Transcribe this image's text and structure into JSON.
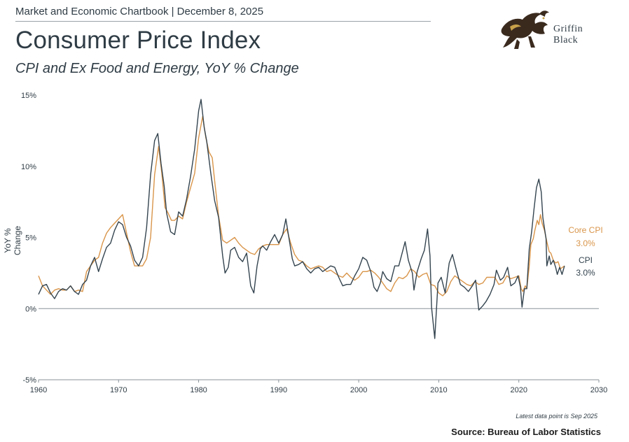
{
  "header": {
    "topline": "Market and Economic Chartbook | December 8, 2025",
    "title": "Consumer Price Index",
    "subtitle": "CPI and Ex Food and Energy, YoY % Change"
  },
  "logo": {
    "line1": "Griffin",
    "line2": "Black",
    "icon": "griffin-emblem"
  },
  "footer": {
    "note": "Latest data point is Sep 2025",
    "source": "Source: Bureau of Labor Statistics"
  },
  "chart_data": {
    "type": "line",
    "title": "",
    "xlabel": "",
    "ylabel": "YoY % Change",
    "xlim": [
      1960,
      2030
    ],
    "ylim": [
      -5,
      15
    ],
    "x_ticks": [
      1960,
      1970,
      1980,
      1990,
      2000,
      2010,
      2020,
      2030
    ],
    "y_ticks": [
      -5,
      0,
      5,
      10,
      15
    ],
    "y_tick_labels": [
      "-5%",
      "0%",
      "5%",
      "10%",
      "15%"
    ],
    "zero_line": true,
    "grid": false,
    "legend": "inline-right",
    "colors": {
      "cpi": "#34444f",
      "core": "#d9954a",
      "zero": "#8a9299"
    },
    "series": [
      {
        "name": "CPI",
        "label_value": "3.0%",
        "color": "#34444f",
        "points": [
          [
            1960.0,
            1.0
          ],
          [
            1960.5,
            1.6
          ],
          [
            1961.0,
            1.7
          ],
          [
            1961.5,
            1.1
          ],
          [
            1962.0,
            0.7
          ],
          [
            1962.5,
            1.2
          ],
          [
            1963.0,
            1.4
          ],
          [
            1963.5,
            1.3
          ],
          [
            1964.0,
            1.6
          ],
          [
            1964.5,
            1.2
          ],
          [
            1965.0,
            1.0
          ],
          [
            1965.5,
            1.7
          ],
          [
            1966.0,
            2.0
          ],
          [
            1966.5,
            3.0
          ],
          [
            1967.0,
            3.6
          ],
          [
            1967.5,
            2.6
          ],
          [
            1968.0,
            3.5
          ],
          [
            1968.5,
            4.3
          ],
          [
            1969.0,
            4.6
          ],
          [
            1969.5,
            5.5
          ],
          [
            1970.0,
            6.1
          ],
          [
            1970.5,
            5.9
          ],
          [
            1971.0,
            5.0
          ],
          [
            1971.5,
            4.4
          ],
          [
            1972.0,
            3.4
          ],
          [
            1972.5,
            3.0
          ],
          [
            1973.0,
            3.6
          ],
          [
            1973.5,
            5.7
          ],
          [
            1974.0,
            9.4
          ],
          [
            1974.5,
            11.8
          ],
          [
            1974.9,
            12.3
          ],
          [
            1975.3,
            10.2
          ],
          [
            1975.7,
            8.6
          ],
          [
            1976.0,
            6.7
          ],
          [
            1976.5,
            5.4
          ],
          [
            1977.0,
            5.2
          ],
          [
            1977.5,
            6.8
          ],
          [
            1978.0,
            6.5
          ],
          [
            1978.5,
            7.7
          ],
          [
            1979.0,
            9.3
          ],
          [
            1979.5,
            11.2
          ],
          [
            1980.0,
            13.9
          ],
          [
            1980.3,
            14.7
          ],
          [
            1980.7,
            12.7
          ],
          [
            1981.0,
            11.8
          ],
          [
            1981.5,
            9.6
          ],
          [
            1982.0,
            7.6
          ],
          [
            1982.5,
            6.4
          ],
          [
            1983.0,
            3.7
          ],
          [
            1983.3,
            2.5
          ],
          [
            1983.7,
            2.9
          ],
          [
            1984.0,
            4.1
          ],
          [
            1984.5,
            4.3
          ],
          [
            1985.0,
            3.6
          ],
          [
            1985.5,
            3.3
          ],
          [
            1986.0,
            3.9
          ],
          [
            1986.5,
            1.6
          ],
          [
            1986.9,
            1.1
          ],
          [
            1987.3,
            3.0
          ],
          [
            1987.7,
            4.2
          ],
          [
            1988.0,
            4.4
          ],
          [
            1988.5,
            4.1
          ],
          [
            1989.0,
            4.7
          ],
          [
            1989.5,
            5.2
          ],
          [
            1990.0,
            4.6
          ],
          [
            1990.5,
            5.2
          ],
          [
            1990.9,
            6.3
          ],
          [
            1991.3,
            4.9
          ],
          [
            1991.7,
            3.5
          ],
          [
            1992.0,
            3.0
          ],
          [
            1992.5,
            3.1
          ],
          [
            1993.0,
            3.3
          ],
          [
            1993.5,
            2.8
          ],
          [
            1994.0,
            2.5
          ],
          [
            1994.5,
            2.8
          ],
          [
            1995.0,
            2.9
          ],
          [
            1995.5,
            2.6
          ],
          [
            1996.0,
            2.8
          ],
          [
            1996.5,
            3.0
          ],
          [
            1997.0,
            2.9
          ],
          [
            1997.5,
            2.2
          ],
          [
            1998.0,
            1.6
          ],
          [
            1998.5,
            1.7
          ],
          [
            1999.0,
            1.7
          ],
          [
            1999.5,
            2.3
          ],
          [
            2000.0,
            2.8
          ],
          [
            2000.5,
            3.6
          ],
          [
            2001.0,
            3.4
          ],
          [
            2001.5,
            2.6
          ],
          [
            2001.9,
            1.5
          ],
          [
            2002.3,
            1.2
          ],
          [
            2002.7,
            1.8
          ],
          [
            2003.0,
            2.6
          ],
          [
            2003.5,
            2.1
          ],
          [
            2004.0,
            1.9
          ],
          [
            2004.5,
            3.0
          ],
          [
            2005.0,
            3.0
          ],
          [
            2005.8,
            4.7
          ],
          [
            2006.2,
            3.4
          ],
          [
            2006.7,
            2.5
          ],
          [
            2006.9,
            1.3
          ],
          [
            2007.3,
            2.6
          ],
          [
            2007.8,
            3.5
          ],
          [
            2008.2,
            4.1
          ],
          [
            2008.6,
            5.6
          ],
          [
            2008.9,
            3.7
          ],
          [
            2009.1,
            0.1
          ],
          [
            2009.5,
            -2.1
          ],
          [
            2009.9,
            1.8
          ],
          [
            2010.3,
            2.2
          ],
          [
            2010.8,
            1.1
          ],
          [
            2011.3,
            3.2
          ],
          [
            2011.7,
            3.8
          ],
          [
            2012.2,
            2.7
          ],
          [
            2012.7,
            1.7
          ],
          [
            2013.2,
            1.5
          ],
          [
            2013.7,
            1.2
          ],
          [
            2014.2,
            1.6
          ],
          [
            2014.6,
            2.0
          ],
          [
            2015.0,
            -0.1
          ],
          [
            2015.5,
            0.2
          ],
          [
            2015.9,
            0.5
          ],
          [
            2016.4,
            1.0
          ],
          [
            2016.9,
            1.7
          ],
          [
            2017.2,
            2.7
          ],
          [
            2017.7,
            2.0
          ],
          [
            2018.1,
            2.2
          ],
          [
            2018.6,
            2.9
          ],
          [
            2019.0,
            1.6
          ],
          [
            2019.5,
            1.8
          ],
          [
            2019.9,
            2.3
          ],
          [
            2020.2,
            1.5
          ],
          [
            2020.4,
            0.1
          ],
          [
            2020.7,
            1.4
          ],
          [
            2021.0,
            1.4
          ],
          [
            2021.3,
            4.2
          ],
          [
            2021.6,
            5.4
          ],
          [
            2021.9,
            7.0
          ],
          [
            2022.2,
            8.5
          ],
          [
            2022.5,
            9.1
          ],
          [
            2022.8,
            8.2
          ],
          [
            2023.0,
            6.4
          ],
          [
            2023.4,
            4.9
          ],
          [
            2023.5,
            3.0
          ],
          [
            2023.8,
            3.7
          ],
          [
            2024.0,
            3.1
          ],
          [
            2024.3,
            3.4
          ],
          [
            2024.6,
            2.9
          ],
          [
            2024.8,
            2.4
          ],
          [
            2025.1,
            2.9
          ],
          [
            2025.4,
            2.4
          ],
          [
            2025.7,
            3.0
          ]
        ]
      },
      {
        "name": "Core CPI",
        "label_value": "3.0%",
        "color": "#d9954a",
        "points": [
          [
            1960.0,
            2.3
          ],
          [
            1960.5,
            1.6
          ],
          [
            1961.0,
            1.3
          ],
          [
            1961.5,
            1.0
          ],
          [
            1962.0,
            1.3
          ],
          [
            1962.5,
            1.4
          ],
          [
            1963.0,
            1.3
          ],
          [
            1963.5,
            1.3
          ],
          [
            1964.0,
            1.6
          ],
          [
            1964.5,
            1.2
          ],
          [
            1965.0,
            1.3
          ],
          [
            1965.5,
            1.2
          ],
          [
            1966.0,
            2.6
          ],
          [
            1966.5,
            3.0
          ],
          [
            1967.0,
            3.4
          ],
          [
            1967.5,
            3.6
          ],
          [
            1968.0,
            4.6
          ],
          [
            1968.5,
            5.3
          ],
          [
            1969.0,
            5.7
          ],
          [
            1969.5,
            6.0
          ],
          [
            1970.0,
            6.3
          ],
          [
            1970.5,
            6.6
          ],
          [
            1971.0,
            5.3
          ],
          [
            1971.5,
            4.0
          ],
          [
            1972.0,
            3.0
          ],
          [
            1972.5,
            3.0
          ],
          [
            1973.0,
            3.0
          ],
          [
            1973.5,
            3.5
          ],
          [
            1974.0,
            5.0
          ],
          [
            1974.5,
            9.4
          ],
          [
            1975.0,
            11.4
          ],
          [
            1975.4,
            9.5
          ],
          [
            1975.8,
            7.1
          ],
          [
            1976.2,
            6.7
          ],
          [
            1976.6,
            6.2
          ],
          [
            1977.0,
            6.2
          ],
          [
            1977.5,
            6.5
          ],
          [
            1978.0,
            6.3
          ],
          [
            1978.5,
            7.5
          ],
          [
            1979.0,
            8.5
          ],
          [
            1979.5,
            9.5
          ],
          [
            1980.0,
            12.0
          ],
          [
            1980.5,
            13.5
          ],
          [
            1980.9,
            12.0
          ],
          [
            1981.3,
            11.0
          ],
          [
            1981.7,
            10.6
          ],
          [
            1982.0,
            9.0
          ],
          [
            1982.5,
            6.5
          ],
          [
            1983.0,
            4.8
          ],
          [
            1983.5,
            4.6
          ],
          [
            1984.0,
            4.8
          ],
          [
            1984.5,
            5.0
          ],
          [
            1985.0,
            4.6
          ],
          [
            1985.5,
            4.3
          ],
          [
            1986.0,
            4.1
          ],
          [
            1986.5,
            3.9
          ],
          [
            1987.0,
            3.8
          ],
          [
            1987.5,
            4.2
          ],
          [
            1988.0,
            4.4
          ],
          [
            1988.5,
            4.5
          ],
          [
            1989.0,
            4.5
          ],
          [
            1989.5,
            4.5
          ],
          [
            1990.0,
            4.5
          ],
          [
            1990.5,
            5.2
          ],
          [
            1991.0,
            5.6
          ],
          [
            1991.5,
            4.6
          ],
          [
            1992.0,
            3.8
          ],
          [
            1992.5,
            3.4
          ],
          [
            1993.0,
            3.3
          ],
          [
            1993.5,
            3.0
          ],
          [
            1994.0,
            2.8
          ],
          [
            1994.5,
            2.9
          ],
          [
            1995.0,
            3.0
          ],
          [
            1995.5,
            2.9
          ],
          [
            1996.0,
            2.6
          ],
          [
            1996.5,
            2.7
          ],
          [
            1997.0,
            2.5
          ],
          [
            1997.5,
            2.3
          ],
          [
            1998.0,
            2.2
          ],
          [
            1998.5,
            2.5
          ],
          [
            1999.0,
            2.2
          ],
          [
            1999.5,
            2.0
          ],
          [
            2000.0,
            2.2
          ],
          [
            2000.5,
            2.6
          ],
          [
            2001.0,
            2.6
          ],
          [
            2001.5,
            2.7
          ],
          [
            2002.0,
            2.5
          ],
          [
            2002.5,
            2.2
          ],
          [
            2003.0,
            1.8
          ],
          [
            2003.5,
            1.4
          ],
          [
            2004.0,
            1.2
          ],
          [
            2004.5,
            1.8
          ],
          [
            2005.0,
            2.2
          ],
          [
            2005.5,
            2.1
          ],
          [
            2006.0,
            2.3
          ],
          [
            2006.5,
            2.8
          ],
          [
            2007.0,
            2.6
          ],
          [
            2007.5,
            2.2
          ],
          [
            2008.0,
            2.4
          ],
          [
            2008.5,
            2.5
          ],
          [
            2009.0,
            1.7
          ],
          [
            2009.5,
            1.6
          ],
          [
            2010.0,
            1.1
          ],
          [
            2010.5,
            0.9
          ],
          [
            2011.0,
            1.2
          ],
          [
            2011.5,
            1.9
          ],
          [
            2012.0,
            2.3
          ],
          [
            2012.5,
            2.1
          ],
          [
            2013.0,
            1.9
          ],
          [
            2013.5,
            1.7
          ],
          [
            2014.0,
            1.6
          ],
          [
            2014.5,
            1.9
          ],
          [
            2015.0,
            1.7
          ],
          [
            2015.5,
            1.8
          ],
          [
            2016.0,
            2.2
          ],
          [
            2016.5,
            2.2
          ],
          [
            2017.0,
            2.2
          ],
          [
            2017.5,
            1.7
          ],
          [
            2018.0,
            1.8
          ],
          [
            2018.5,
            2.3
          ],
          [
            2019.0,
            2.1
          ],
          [
            2019.5,
            2.2
          ],
          [
            2020.0,
            2.3
          ],
          [
            2020.3,
            1.4
          ],
          [
            2020.5,
            1.2
          ],
          [
            2020.8,
            1.6
          ],
          [
            2021.0,
            1.4
          ],
          [
            2021.3,
            3.0
          ],
          [
            2021.5,
            4.5
          ],
          [
            2021.8,
            4.9
          ],
          [
            2022.0,
            5.5
          ],
          [
            2022.3,
            6.2
          ],
          [
            2022.5,
            5.9
          ],
          [
            2022.7,
            6.6
          ],
          [
            2022.9,
            6.0
          ],
          [
            2023.2,
            5.5
          ],
          [
            2023.5,
            4.7
          ],
          [
            2023.8,
            4.0
          ],
          [
            2024.0,
            3.9
          ],
          [
            2024.3,
            3.4
          ],
          [
            2024.6,
            3.2
          ],
          [
            2024.9,
            3.3
          ],
          [
            2025.2,
            2.8
          ],
          [
            2025.7,
            3.0
          ]
        ]
      }
    ]
  }
}
